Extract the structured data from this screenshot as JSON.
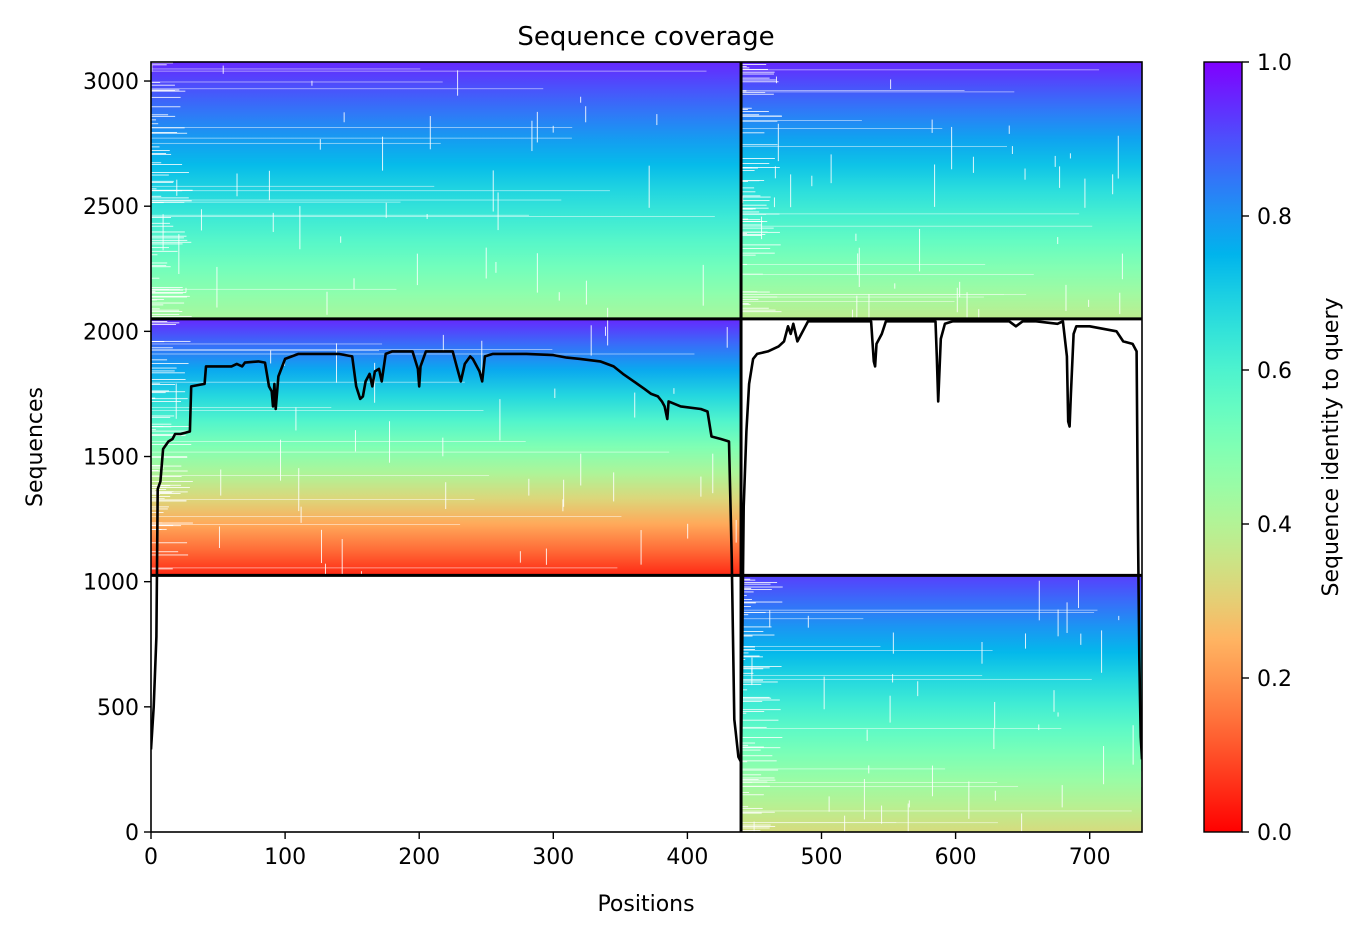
{
  "chart_data": {
    "type": "heatmap",
    "title": "Sequence coverage",
    "xlabel": "Positions",
    "ylabel": "Sequences",
    "xlim": [
      0,
      739
    ],
    "ylim": [
      0,
      3076
    ],
    "x_ticks": [
      0,
      100,
      200,
      300,
      400,
      500,
      600,
      700
    ],
    "y_ticks": [
      0,
      500,
      1000,
      1500,
      2000,
      2500,
      3000
    ],
    "colormap": "rainbow_r",
    "colorbar": {
      "label": "Sequence identity to query",
      "range": [
        0.0,
        1.0
      ],
      "ticks": [
        "0.0",
        "0.2",
        "0.4",
        "0.6",
        "0.8",
        "1.0"
      ]
    },
    "segment_boundaries": {
      "positions": [
        440
      ],
      "sequences": [
        1025,
        2050
      ]
    },
    "blocks": [
      {
        "name": "chain A rows, chain A columns",
        "x_range": [
          0,
          440
        ],
        "y_range": [
          1025,
          2050
        ],
        "identity_bottom": 0.05,
        "identity_top": 0.95
      },
      {
        "name": "chain B rows, chain B columns",
        "x_range": [
          440,
          739
        ],
        "y_range": [
          0,
          1025
        ],
        "identity_bottom": 0.33,
        "identity_top": 0.92
      },
      {
        "name": "paired rows, chain A columns",
        "x_range": [
          0,
          440
        ],
        "y_range": [
          2050,
          3076
        ],
        "identity_bottom": 0.42,
        "identity_top": 0.95
      },
      {
        "name": "paired rows, chain B columns",
        "x_range": [
          440,
          739
        ],
        "y_range": [
          2050,
          3076
        ],
        "identity_bottom": 0.38,
        "identity_top": 0.95
      }
    ],
    "coverage_line": {
      "color": "#000000",
      "points": [
        [
          0,
          330
        ],
        [
          2,
          500
        ],
        [
          4,
          780
        ],
        [
          5,
          1370
        ],
        [
          7,
          1400
        ],
        [
          9,
          1530
        ],
        [
          13,
          1560
        ],
        [
          16,
          1570
        ],
        [
          18,
          1590
        ],
        [
          22,
          1590
        ],
        [
          29,
          1600
        ],
        [
          30,
          1780
        ],
        [
          40,
          1790
        ],
        [
          41,
          1860
        ],
        [
          60,
          1860
        ],
        [
          64,
          1870
        ],
        [
          68,
          1860
        ],
        [
          70,
          1875
        ],
        [
          80,
          1880
        ],
        [
          85,
          1875
        ],
        [
          88,
          1780
        ],
        [
          90,
          1760
        ],
        [
          91,
          1700
        ],
        [
          92,
          1790
        ],
        [
          93,
          1690
        ],
        [
          95,
          1820
        ],
        [
          100,
          1890
        ],
        [
          105,
          1900
        ],
        [
          110,
          1910
        ],
        [
          120,
          1910
        ],
        [
          140,
          1910
        ],
        [
          150,
          1900
        ],
        [
          153,
          1780
        ],
        [
          156,
          1730
        ],
        [
          158,
          1740
        ],
        [
          160,
          1800
        ],
        [
          163,
          1830
        ],
        [
          165,
          1780
        ],
        [
          167,
          1840
        ],
        [
          170,
          1850
        ],
        [
          172,
          1800
        ],
        [
          175,
          1910
        ],
        [
          180,
          1920
        ],
        [
          195,
          1920
        ],
        [
          199,
          1850
        ],
        [
          200,
          1780
        ],
        [
          201,
          1860
        ],
        [
          205,
          1920
        ],
        [
          210,
          1920
        ],
        [
          225,
          1920
        ],
        [
          228,
          1860
        ],
        [
          231,
          1800
        ],
        [
          234,
          1870
        ],
        [
          238,
          1900
        ],
        [
          240,
          1890
        ],
        [
          245,
          1840
        ],
        [
          247,
          1800
        ],
        [
          249,
          1900
        ],
        [
          255,
          1910
        ],
        [
          280,
          1910
        ],
        [
          300,
          1905
        ],
        [
          310,
          1895
        ],
        [
          320,
          1890
        ],
        [
          335,
          1880
        ],
        [
          345,
          1860
        ],
        [
          352,
          1830
        ],
        [
          360,
          1800
        ],
        [
          368,
          1770
        ],
        [
          373,
          1750
        ],
        [
          378,
          1740
        ],
        [
          381,
          1720
        ],
        [
          383,
          1700
        ],
        [
          385,
          1650
        ],
        [
          386,
          1720
        ],
        [
          395,
          1700
        ],
        [
          410,
          1690
        ],
        [
          415,
          1680
        ],
        [
          418,
          1580
        ],
        [
          425,
          1570
        ],
        [
          431,
          1560
        ],
        [
          433,
          1100
        ],
        [
          435,
          450
        ],
        [
          436,
          400
        ],
        [
          438,
          300
        ],
        [
          440,
          280
        ],
        [
          442,
          1300
        ],
        [
          444,
          1600
        ],
        [
          446,
          1790
        ],
        [
          449,
          1890
        ],
        [
          452,
          1910
        ],
        [
          460,
          1920
        ],
        [
          468,
          1940
        ],
        [
          472,
          1960
        ],
        [
          475,
          2020
        ],
        [
          477,
          1990
        ],
        [
          479,
          2030
        ],
        [
          482,
          1960
        ],
        [
          485,
          1990
        ],
        [
          488,
          2020
        ],
        [
          490,
          2040
        ],
        [
          495,
          2040
        ],
        [
          530,
          2040
        ],
        [
          537,
          2040
        ],
        [
          539,
          1880
        ],
        [
          540,
          1860
        ],
        [
          541,
          1950
        ],
        [
          545,
          1990
        ],
        [
          548,
          2040
        ],
        [
          580,
          2040
        ],
        [
          585,
          2040
        ],
        [
          586,
          1900
        ],
        [
          587,
          1720
        ],
        [
          589,
          1970
        ],
        [
          592,
          2030
        ],
        [
          598,
          2040
        ],
        [
          640,
          2040
        ],
        [
          645,
          2020
        ],
        [
          650,
          2040
        ],
        [
          660,
          2040
        ],
        [
          676,
          2030
        ],
        [
          680,
          2040
        ],
        [
          683,
          1900
        ],
        [
          684,
          1640
        ],
        [
          685,
          1620
        ],
        [
          686,
          1750
        ],
        [
          688,
          1990
        ],
        [
          690,
          2020
        ],
        [
          700,
          2020
        ],
        [
          710,
          2010
        ],
        [
          720,
          2000
        ],
        [
          725,
          1960
        ],
        [
          732,
          1950
        ],
        [
          735,
          1920
        ],
        [
          736,
          1200
        ],
        [
          737,
          700
        ],
        [
          738,
          380
        ],
        [
          739,
          290
        ]
      ]
    }
  },
  "chart_title": "Sequence coverage",
  "x_axis_label": "Positions",
  "y_axis_label": "Sequences",
  "colorbar_label": "Sequence identity to query"
}
